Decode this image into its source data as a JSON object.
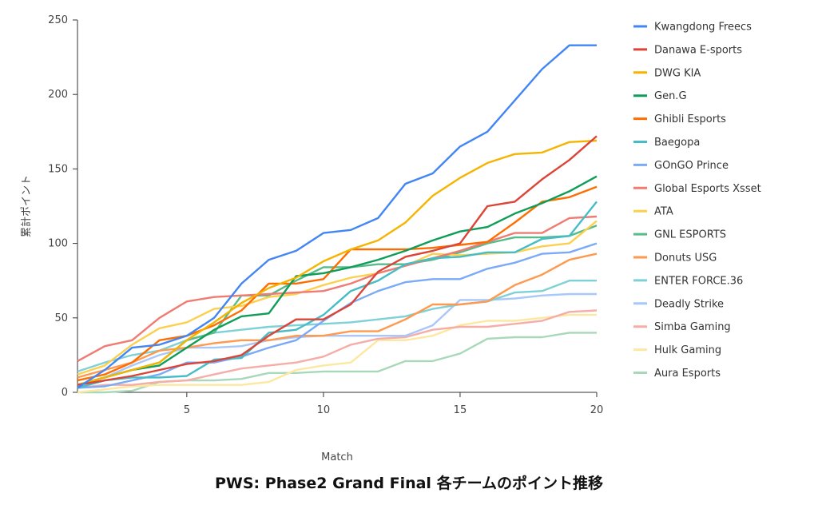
{
  "caption": "PWS: Phase2 Grand Final 各チームのポイント推移",
  "chart_data": {
    "type": "line",
    "title": "PWS: Phase2 Grand Final 各チームのポイント推移",
    "xlabel": "Match",
    "ylabel": "累計ポイント",
    "xlim": [
      1,
      20
    ],
    "ylim": [
      0,
      250
    ],
    "x_ticks": [
      5,
      10,
      15,
      20
    ],
    "y_ticks": [
      0,
      50,
      100,
      150,
      200,
      250
    ],
    "grid": false,
    "legend_position": "right",
    "x": [
      1,
      2,
      3,
      4,
      5,
      6,
      7,
      8,
      9,
      10,
      11,
      12,
      13,
      14,
      15,
      16,
      17,
      18,
      19,
      20
    ],
    "series": [
      {
        "name": "Kwangdong Freecs",
        "color": "#4285F4",
        "values": [
          3,
          15,
          30,
          32,
          38,
          50,
          73,
          89,
          95,
          107,
          109,
          117,
          140,
          147,
          165,
          175,
          196,
          217,
          233,
          233
        ]
      },
      {
        "name": "Danawa E-sports",
        "color": "#DB4437",
        "values": [
          5,
          8,
          11,
          15,
          19,
          21,
          25,
          38,
          49,
          49,
          59,
          81,
          91,
          95,
          100,
          125,
          128,
          143,
          156,
          172
        ]
      },
      {
        "name": "DWG KIA",
        "color": "#F4B400",
        "values": [
          5,
          10,
          15,
          20,
          35,
          47,
          60,
          70,
          77,
          88,
          96,
          102,
          114,
          132,
          144,
          154,
          160,
          161,
          168,
          169
        ]
      },
      {
        "name": "Gen.G",
        "color": "#0F9D58",
        "values": [
          5,
          10,
          15,
          18,
          30,
          42,
          51,
          53,
          78,
          80,
          84,
          89,
          95,
          102,
          108,
          111,
          120,
          127,
          135,
          145
        ]
      },
      {
        "name": "Ghibli Esports",
        "color": "#FF6D01",
        "values": [
          8,
          12,
          20,
          35,
          38,
          45,
          55,
          73,
          73,
          76,
          96,
          96,
          96,
          97,
          99,
          101,
          114,
          128,
          131,
          138
        ]
      },
      {
        "name": "Baegopa",
        "color": "#46BDC6",
        "values": [
          3,
          8,
          10,
          10,
          11,
          22,
          23,
          40,
          42,
          52,
          68,
          75,
          86,
          90,
          91,
          94,
          94,
          103,
          105,
          128
        ]
      },
      {
        "name": "GOnGO Prince",
        "color": "#7BAAF7",
        "values": [
          3,
          4,
          8,
          12,
          20,
          20,
          24,
          30,
          35,
          48,
          60,
          68,
          74,
          76,
          76,
          83,
          87,
          93,
          94,
          100
        ]
      },
      {
        "name": "Global Esports Xsset",
        "color": "#F07B72",
        "values": [
          21,
          31,
          35,
          50,
          61,
          64,
          65,
          66,
          67,
          68,
          73,
          80,
          85,
          90,
          95,
          101,
          107,
          107,
          117,
          118
        ]
      },
      {
        "name": "ATA",
        "color": "#FCD04F",
        "values": [
          12,
          18,
          32,
          43,
          47,
          56,
          58,
          64,
          66,
          72,
          77,
          80,
          85,
          93,
          92,
          93,
          94,
          98,
          100,
          115
        ]
      },
      {
        "name": "GNL ESPORTS",
        "color": "#57BB8A",
        "values": [
          5,
          10,
          15,
          20,
          35,
          40,
          65,
          65,
          75,
          84,
          84,
          86,
          86,
          89,
          94,
          100,
          104,
          104,
          105,
          112
        ]
      },
      {
        "name": "Donuts USG",
        "color": "#FF994D",
        "values": [
          10,
          15,
          20,
          28,
          30,
          33,
          35,
          35,
          38,
          38,
          41,
          41,
          49,
          59,
          59,
          61,
          72,
          79,
          89,
          93
        ]
      },
      {
        "name": "ENTER FORCE.36",
        "color": "#7ED1D7",
        "values": [
          14,
          20,
          25,
          28,
          35,
          40,
          42,
          44,
          45,
          46,
          47,
          49,
          51,
          56,
          59,
          61,
          67,
          68,
          75,
          75
        ]
      },
      {
        "name": "Deadly Strike",
        "color": "#A8C7FA",
        "values": [
          5,
          10,
          18,
          25,
          30,
          30,
          31,
          35,
          37,
          38,
          38,
          38,
          38,
          45,
          62,
          62,
          63,
          65,
          66,
          66
        ]
      },
      {
        "name": "Simba Gaming",
        "color": "#F5ADA8",
        "values": [
          3,
          5,
          5,
          7,
          8,
          12,
          16,
          18,
          20,
          24,
          32,
          36,
          37,
          42,
          44,
          44,
          46,
          48,
          54,
          55
        ]
      },
      {
        "name": "Hulk Gaming",
        "color": "#FCE8A1",
        "values": [
          0,
          2,
          4,
          5,
          5,
          5,
          5,
          7,
          15,
          18,
          20,
          35,
          35,
          38,
          45,
          48,
          48,
          50,
          52,
          52
        ]
      },
      {
        "name": "Aura Esports",
        "color": "#A8D8B9",
        "values": [
          0,
          0,
          1,
          7,
          8,
          8,
          9,
          13,
          13,
          14,
          14,
          14,
          21,
          21,
          26,
          36,
          37,
          37,
          40,
          40
        ]
      }
    ]
  }
}
